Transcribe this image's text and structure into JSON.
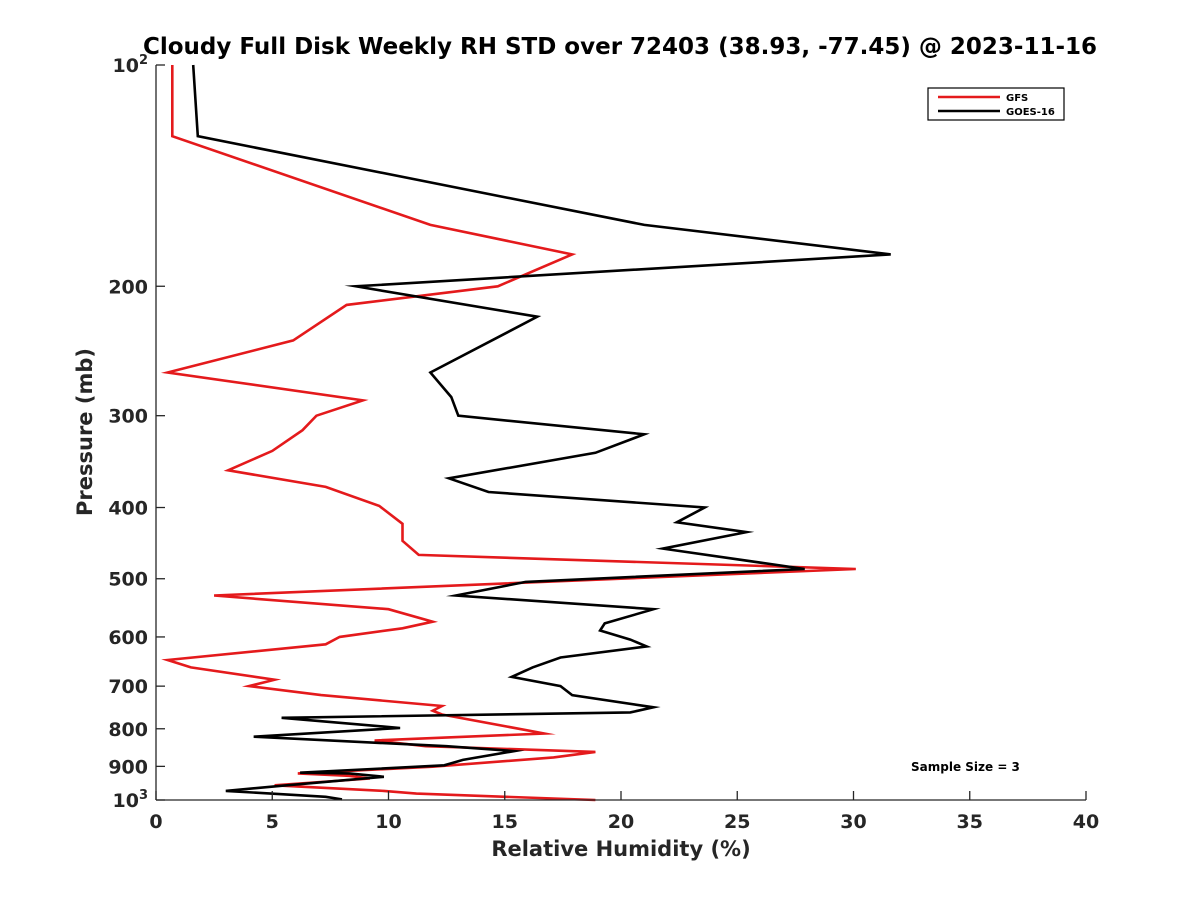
{
  "chart_data": {
    "type": "line",
    "title": "Cloudy Full Disk Weekly RH STD over 72403 (38.93, -77.45) @ 2023-11-16",
    "xlabel": "Relative Humidity (%)",
    "ylabel": "Pressure (mb)",
    "xlim": [
      0,
      40
    ],
    "ylim": [
      100,
      1000
    ],
    "y_scale": "log",
    "y_reversed": true,
    "x_ticks": [
      "0",
      "5",
      "10",
      "15",
      "20",
      "25",
      "30",
      "35",
      "40"
    ],
    "y_ticks": [
      {
        "value": 100,
        "base": "10",
        "exp": "2"
      },
      {
        "value": 200,
        "label": "200"
      },
      {
        "value": 300,
        "label": "300"
      },
      {
        "value": 400,
        "label": "400"
      },
      {
        "value": 500,
        "label": "500"
      },
      {
        "value": 600,
        "label": "600"
      },
      {
        "value": 700,
        "label": "700"
      },
      {
        "value": 800,
        "label": "800"
      },
      {
        "value": 900,
        "label": "900"
      },
      {
        "value": 1000,
        "base": "10",
        "exp": "3"
      }
    ],
    "legend_position": "top-right",
    "grid": false,
    "annotation": "Sample Size = 3",
    "series": [
      {
        "name": "GFS",
        "color": "#e41a1c",
        "points": [
          [
            0.7,
            100
          ],
          [
            0.7,
            125
          ],
          [
            11.8,
            165
          ],
          [
            17.9,
            181
          ],
          [
            14.7,
            200
          ],
          [
            8.2,
            212
          ],
          [
            5.9,
            237
          ],
          [
            0.5,
            262
          ],
          [
            8.9,
            286
          ],
          [
            6.9,
            300
          ],
          [
            6.3,
            314
          ],
          [
            5.0,
            335
          ],
          [
            3.1,
            356
          ],
          [
            7.3,
            375
          ],
          [
            9.6,
            398
          ],
          [
            10.6,
            421
          ],
          [
            10.6,
            444
          ],
          [
            11.3,
            464
          ],
          [
            30.1,
            485
          ],
          [
            2.5,
            527
          ],
          [
            10.0,
            550
          ],
          [
            11.9,
            572
          ],
          [
            10.6,
            584
          ],
          [
            7.9,
            600
          ],
          [
            7.3,
            614
          ],
          [
            0.5,
            645
          ],
          [
            1.5,
            660
          ],
          [
            5.1,
            686
          ],
          [
            4.0,
            700
          ],
          [
            7.1,
            720
          ],
          [
            12.3,
            745
          ],
          [
            11.9,
            756
          ],
          [
            12.3,
            765
          ],
          [
            16.7,
            812
          ],
          [
            9.4,
            830
          ],
          [
            11.6,
            845
          ],
          [
            18.9,
            860
          ],
          [
            17.1,
            875
          ],
          [
            11.9,
            901
          ],
          [
            6.1,
            920
          ],
          [
            8.3,
            927
          ],
          [
            9.2,
            935
          ],
          [
            5.1,
            955
          ],
          [
            9.8,
            972
          ],
          [
            11.2,
            980
          ],
          [
            18.9,
            1000
          ]
        ]
      },
      {
        "name": "GOES-16",
        "color": "#000000",
        "points": [
          [
            1.6,
            100
          ],
          [
            1.8,
            125
          ],
          [
            21.0,
            165
          ],
          [
            31.6,
            181
          ],
          [
            8.6,
            200
          ],
          [
            16.4,
            220
          ],
          [
            11.8,
            262
          ],
          [
            12.7,
            283
          ],
          [
            13.0,
            300
          ],
          [
            21.0,
            318
          ],
          [
            18.9,
            337
          ],
          [
            12.6,
            365
          ],
          [
            14.3,
            381
          ],
          [
            23.6,
            400
          ],
          [
            22.4,
            419
          ],
          [
            25.4,
            432
          ],
          [
            21.8,
            455
          ],
          [
            27.9,
            485
          ],
          [
            15.9,
            505
          ],
          [
            12.9,
            527
          ],
          [
            21.4,
            550
          ],
          [
            19.3,
            575
          ],
          [
            19.1,
            588
          ],
          [
            20.4,
            605
          ],
          [
            21.1,
            618
          ],
          [
            17.4,
            640
          ],
          [
            16.2,
            660
          ],
          [
            15.3,
            680
          ],
          [
            17.4,
            700
          ],
          [
            17.9,
            720
          ],
          [
            21.4,
            748
          ],
          [
            20.4,
            760
          ],
          [
            5.4,
            773
          ],
          [
            10.5,
            798
          ],
          [
            4.2,
            820
          ],
          [
            12.5,
            845
          ],
          [
            15.4,
            858
          ],
          [
            13.2,
            882
          ],
          [
            12.4,
            897
          ],
          [
            6.2,
            918
          ],
          [
            8.3,
            920
          ],
          [
            9.8,
            930
          ],
          [
            5.5,
            956
          ],
          [
            3.0,
            972
          ],
          [
            7.3,
            990
          ],
          [
            8.0,
            998
          ]
        ]
      }
    ]
  }
}
